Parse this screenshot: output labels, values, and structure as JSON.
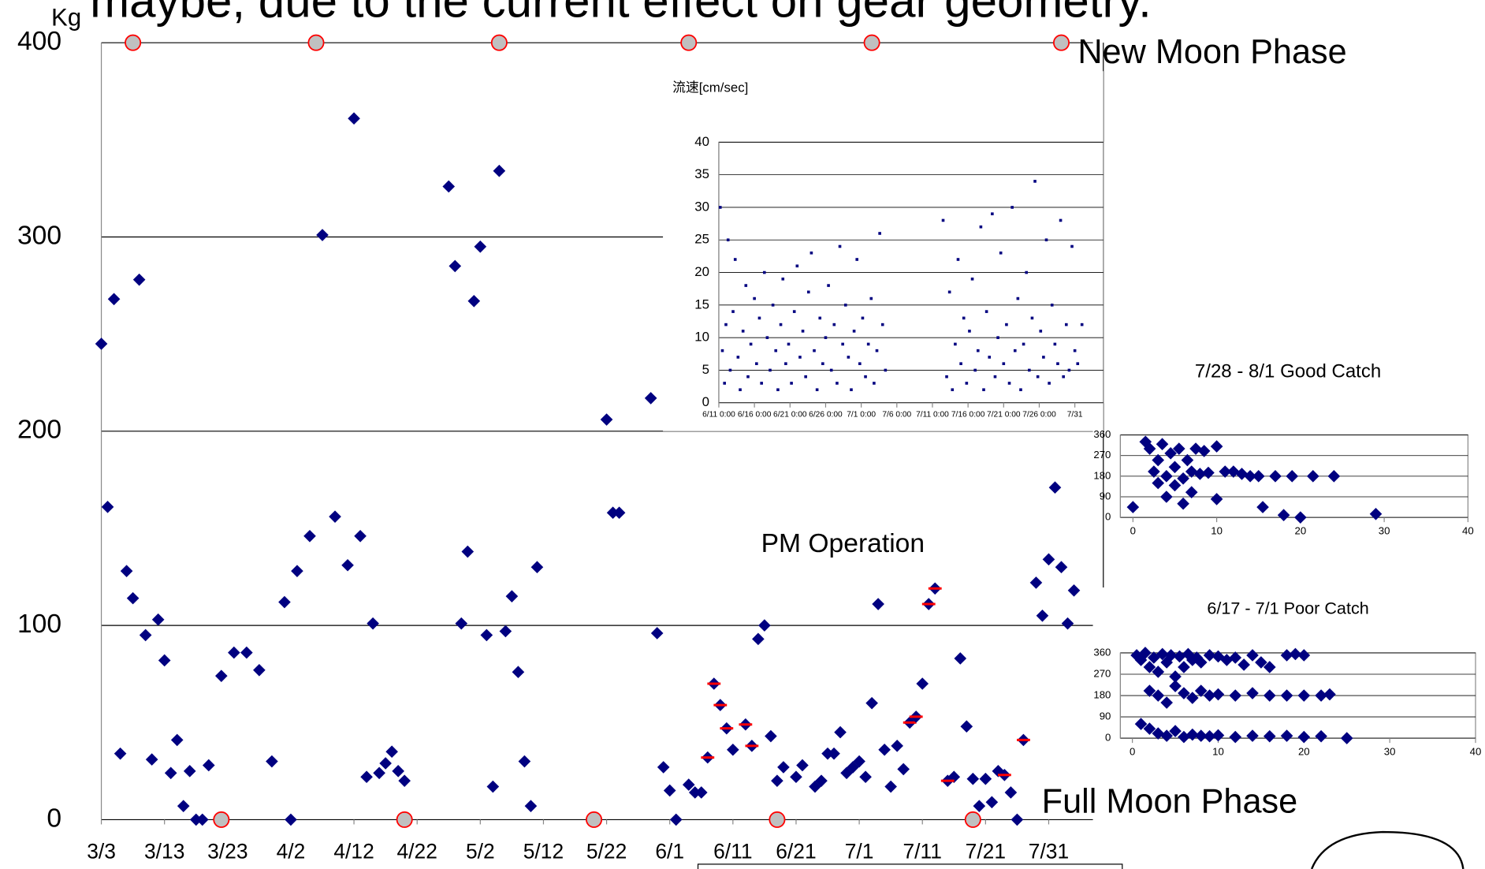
{
  "chart_data": [
    {
      "type": "scatter",
      "title": "maybe, due to the current effect on gear geometry.",
      "ylabel": "Kg",
      "xlim": [
        0,
        157
      ],
      "ylim": [
        0,
        400
      ],
      "yticks": [
        0,
        100,
        200,
        300,
        400
      ],
      "xticks": [
        {
          "value": 0,
          "label": "3/3"
        },
        {
          "value": 10,
          "label": "3/13"
        },
        {
          "value": 20,
          "label": "3/23"
        },
        {
          "value": 30,
          "label": "4/2"
        },
        {
          "value": 40,
          "label": "4/12"
        },
        {
          "value": 50,
          "label": "4/22"
        },
        {
          "value": 60,
          "label": "5/2"
        },
        {
          "value": 70,
          "label": "5/12"
        },
        {
          "value": 80,
          "label": "5/22"
        },
        {
          "value": 90,
          "label": "6/1"
        },
        {
          "value": 100,
          "label": "6/11"
        },
        {
          "value": 110,
          "label": "6/21"
        },
        {
          "value": 120,
          "label": "7/1"
        },
        {
          "value": 130,
          "label": "7/11"
        },
        {
          "value": 140,
          "label": "7/21"
        },
        {
          "value": 150,
          "label": "7/31"
        }
      ],
      "grid": true,
      "series": [
        {
          "color": "#000080",
          "x": [
            0,
            1,
            2,
            3,
            4,
            5,
            6,
            7,
            8,
            9,
            10,
            11,
            12,
            13,
            14,
            15,
            16,
            17,
            19,
            21,
            23,
            25,
            27,
            29,
            30,
            31,
            33,
            35,
            37,
            39,
            40,
            41,
            42,
            43,
            44,
            45,
            46,
            47,
            48,
            55,
            56,
            57,
            58,
            59,
            60,
            61,
            62,
            63,
            64,
            65,
            66,
            67,
            68,
            69,
            80,
            81,
            82,
            87,
            88,
            89,
            90,
            91,
            93,
            94,
            95,
            100,
            104,
            105,
            106,
            107,
            108,
            110,
            111,
            113,
            114,
            115,
            116,
            117,
            118,
            119,
            120,
            121,
            122,
            123,
            124,
            125,
            126,
            127,
            130,
            135,
            136,
            137,
            138,
            139,
            140,
            141,
            142,
            144,
            145,
            148,
            149,
            150,
            151,
            152,
            153,
            154
          ],
          "values": [
            245,
            161,
            268,
            34,
            128,
            114,
            278,
            95,
            31,
            103,
            82,
            24,
            41,
            7,
            25,
            0,
            0,
            28,
            74,
            86,
            86,
            77,
            30,
            112,
            0,
            128,
            146,
            301,
            156,
            131,
            361,
            146,
            22,
            101,
            24,
            29,
            35,
            25,
            20,
            326,
            285,
            101,
            138,
            267,
            295,
            95,
            17,
            334,
            97,
            115,
            76,
            30,
            7,
            130,
            206,
            158,
            158,
            217,
            96,
            27,
            15,
            0,
            18,
            14,
            14,
            36,
            93,
            100,
            43,
            20,
            27,
            22,
            28,
            17,
            20,
            34,
            34,
            45,
            24,
            27,
            30,
            22,
            60,
            111,
            36,
            17,
            38,
            26,
            70,
            22,
            83,
            48,
            21,
            7,
            21,
            9,
            25,
            14,
            0,
            122,
            105,
            134,
            171,
            130,
            101,
            118
          ]
        },
        {
          "name": "PM Operation",
          "color": "#ff0000",
          "x": [
            96,
            97,
            98,
            99,
            102,
            103,
            128,
            129,
            131,
            132,
            134,
            143,
            146
          ],
          "values": [
            32,
            70,
            59,
            47,
            49,
            38,
            50,
            53,
            111,
            119,
            20,
            23,
            41
          ]
        },
        {
          "name": "New Moon Phase",
          "color": "#c0c0c0",
          "edgecolor": "#ff0000",
          "x": [
            5,
            34,
            63,
            93,
            122,
            152
          ],
          "values": [
            400,
            400,
            400,
            400,
            400,
            400
          ]
        },
        {
          "name": "Full Moon Phase",
          "color": "#c0c0c0",
          "edgecolor": "#ff0000",
          "x": [
            19,
            48,
            78,
            107,
            138
          ],
          "values": [
            0,
            0,
            0,
            0,
            0
          ]
        }
      ]
    },
    {
      "type": "scatter",
      "title": "流速[cm/sec]",
      "xlim": [
        0,
        54
      ],
      "ylim": [
        0,
        40
      ],
      "yticks": [
        0,
        5,
        10,
        15,
        20,
        25,
        30,
        35,
        40
      ],
      "xticks": [
        {
          "value": 0,
          "label": "6/11 0:00"
        },
        {
          "value": 5,
          "label": "6/16 0:00"
        },
        {
          "value": 10,
          "label": "6/21 0:00"
        },
        {
          "value": 15,
          "label": "6/26 0:00"
        },
        {
          "value": 20,
          "label": "7/1 0:00"
        },
        {
          "value": 25,
          "label": "7/6 0:00"
        },
        {
          "value": 30,
          "label": "7/11 0:00"
        },
        {
          "value": 35,
          "label": "7/16 0:00"
        },
        {
          "value": 40,
          "label": "7/21 0:00"
        },
        {
          "value": 45,
          "label": "7/26 0:00"
        },
        {
          "value": 50,
          "label": "7/31"
        }
      ],
      "grid": true,
      "series": [
        {
          "color": "#000080",
          "x": [
            0.2,
            0.5,
            0.8,
            1,
            1.3,
            1.6,
            2,
            2.3,
            2.7,
            3,
            3.4,
            3.8,
            4.1,
            4.5,
            5,
            5.3,
            5.7,
            6,
            6.4,
            6.8,
            7.2,
            7.6,
            8,
            8.3,
            8.7,
            9,
            9.4,
            9.8,
            10.2,
            10.6,
            11,
            11.4,
            11.8,
            12.2,
            12.6,
            13,
            13.4,
            13.8,
            14.2,
            14.6,
            15,
            15.4,
            15.8,
            16.2,
            16.6,
            17,
            17.4,
            17.8,
            18.2,
            18.6,
            19,
            19.4,
            19.8,
            20.2,
            20.6,
            21,
            21.4,
            21.8,
            22.2,
            22.6,
            23,
            23.4,
            31.5,
            32,
            32.4,
            32.8,
            33.2,
            33.6,
            34,
            34.4,
            34.8,
            35.2,
            35.6,
            36,
            36.4,
            36.8,
            37.2,
            37.6,
            38,
            38.4,
            38.8,
            39.2,
            39.6,
            40,
            40.4,
            40.8,
            41.2,
            41.6,
            42,
            42.4,
            42.8,
            43.2,
            43.6,
            44,
            44.4,
            44.8,
            45.2,
            45.6,
            46,
            46.4,
            46.8,
            47.2,
            47.6,
            48,
            48.4,
            48.8,
            49.2,
            49.6,
            50,
            50.4,
            51
          ],
          "values": [
            30,
            8,
            3,
            12,
            25,
            5,
            14,
            22,
            7,
            2,
            11,
            18,
            4,
            9,
            16,
            6,
            13,
            3,
            20,
            10,
            5,
            15,
            8,
            2,
            12,
            19,
            6,
            9,
            3,
            14,
            21,
            7,
            11,
            4,
            17,
            23,
            8,
            2,
            13,
            6,
            10,
            18,
            5,
            12,
            3,
            24,
            9,
            15,
            7,
            2,
            11,
            22,
            6,
            13,
            4,
            9,
            16,
            3,
            8,
            26,
            12,
            5,
            28,
            4,
            17,
            2,
            9,
            22,
            6,
            13,
            3,
            11,
            19,
            5,
            8,
            27,
            2,
            14,
            7,
            29,
            4,
            10,
            23,
            6,
            12,
            3,
            30,
            8,
            16,
            2,
            9,
            20,
            5,
            13,
            34,
            4,
            11,
            7,
            25,
            3,
            15,
            9,
            6,
            28,
            4,
            12,
            5,
            24,
            8,
            6,
            12
          ]
        }
      ]
    },
    {
      "type": "scatter",
      "title": "7/28 - 8/1 Good Catch",
      "xlim": [
        -1.5,
        40
      ],
      "ylim": [
        0,
        360
      ],
      "yticks": [
        0,
        90,
        180,
        270,
        360
      ],
      "xticks": [
        0,
        10,
        20,
        30,
        40
      ],
      "grid": true,
      "series": [
        {
          "color": "#000080",
          "x": [
            0,
            1.5,
            2,
            2.5,
            3,
            3,
            3.5,
            4,
            4,
            4.5,
            5,
            5,
            5.5,
            6,
            6,
            6.5,
            7,
            7,
            7.5,
            8,
            8.5,
            9,
            10,
            10,
            11,
            12,
            13,
            14,
            15,
            15.5,
            17,
            18,
            19,
            20,
            21.5,
            24,
            29
          ],
          "values": [
            45,
            330,
            300,
            200,
            250,
            150,
            320,
            180,
            90,
            280,
            220,
            140,
            300,
            170,
            60,
            250,
            200,
            110,
            300,
            190,
            290,
            195,
            310,
            80,
            200,
            200,
            190,
            180,
            180,
            45,
            180,
            10,
            180,
            0,
            180,
            180,
            15
          ]
        }
      ]
    },
    {
      "type": "scatter",
      "title": "6/17 - 7/1 Poor Catch",
      "xlim": [
        -1.4,
        40
      ],
      "ylim": [
        0,
        360
      ],
      "yticks": [
        0,
        90,
        180,
        270,
        360
      ],
      "xticks": [
        0,
        10,
        20,
        30,
        40
      ],
      "grid": true,
      "series": [
        {
          "color": "#000080",
          "x": [
            0.5,
            1,
            1.5,
            2,
            2.5,
            3,
            3.5,
            4,
            4.5,
            5,
            5.5,
            6,
            6.5,
            7,
            7.5,
            8,
            9,
            10,
            11,
            12,
            13,
            14,
            15,
            16,
            18,
            19,
            20,
            2,
            3,
            4,
            5,
            6,
            7,
            8,
            9,
            10,
            12,
            14,
            16,
            18,
            20,
            22,
            23,
            1,
            2,
            3,
            4,
            5,
            6,
            7,
            8,
            9,
            10,
            12,
            14,
            16,
            18,
            20,
            22,
            25
          ],
          "values": [
            350,
            330,
            360,
            300,
            340,
            280,
            355,
            320,
            350,
            260,
            345,
            300,
            355,
            330,
            340,
            320,
            350,
            345,
            330,
            340,
            310,
            350,
            320,
            300,
            350,
            355,
            350,
            200,
            180,
            150,
            220,
            190,
            170,
            200,
            180,
            185,
            180,
            190,
            180,
            180,
            180,
            180,
            185,
            60,
            40,
            20,
            10,
            30,
            5,
            15,
            10,
            8,
            12,
            5,
            10,
            8,
            10,
            5,
            8,
            0
          ]
        }
      ]
    }
  ]
}
